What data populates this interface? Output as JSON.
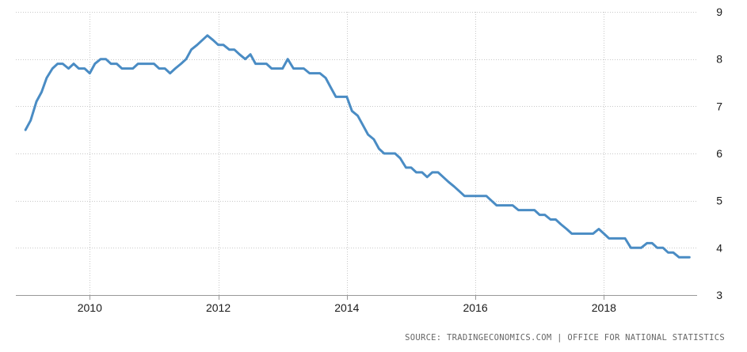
{
  "chart_data": {
    "type": "line",
    "title": "",
    "xlabel": "",
    "ylabel": "",
    "xlim": [
      2008.85,
      2019.45
    ],
    "ylim": [
      3,
      9
    ],
    "x_ticks": [
      2010,
      2012,
      2014,
      2016,
      2018
    ],
    "y_ticks": [
      3,
      4,
      5,
      6,
      7,
      8,
      9
    ],
    "grid": true,
    "legend": "none",
    "y_axis_side": "right",
    "series": [
      {
        "color": "#4a8cc4",
        "x": [
          2009.0,
          2009.08,
          2009.17,
          2009.25,
          2009.33,
          2009.42,
          2009.5,
          2009.58,
          2009.67,
          2009.75,
          2009.83,
          2009.92,
          2010.0,
          2010.08,
          2010.17,
          2010.25,
          2010.33,
          2010.42,
          2010.5,
          2010.58,
          2010.67,
          2010.75,
          2010.83,
          2010.92,
          2011.0,
          2011.08,
          2011.17,
          2011.25,
          2011.33,
          2011.42,
          2011.5,
          2011.58,
          2011.67,
          2011.75,
          2011.83,
          2011.92,
          2012.0,
          2012.08,
          2012.17,
          2012.25,
          2012.33,
          2012.42,
          2012.5,
          2012.58,
          2012.67,
          2012.75,
          2012.83,
          2012.92,
          2013.0,
          2013.08,
          2013.17,
          2013.25,
          2013.33,
          2013.42,
          2013.5,
          2013.58,
          2013.67,
          2013.75,
          2013.83,
          2013.92,
          2014.0,
          2014.08,
          2014.17,
          2014.25,
          2014.33,
          2014.42,
          2014.5,
          2014.58,
          2014.67,
          2014.75,
          2014.83,
          2014.92,
          2015.0,
          2015.08,
          2015.17,
          2015.25,
          2015.33,
          2015.42,
          2015.5,
          2015.58,
          2015.67,
          2015.75,
          2015.83,
          2015.92,
          2016.0,
          2016.08,
          2016.17,
          2016.25,
          2016.33,
          2016.42,
          2016.5,
          2016.58,
          2016.67,
          2016.75,
          2016.83,
          2016.92,
          2017.0,
          2017.08,
          2017.17,
          2017.25,
          2017.33,
          2017.42,
          2017.5,
          2017.58,
          2017.67,
          2017.75,
          2017.83,
          2017.92,
          2018.0,
          2018.08,
          2018.17,
          2018.25,
          2018.33,
          2018.42,
          2018.5,
          2018.58,
          2018.67,
          2018.75,
          2018.83,
          2018.92,
          2019.0,
          2019.08,
          2019.17,
          2019.25,
          2019.33
        ],
        "values": [
          6.5,
          6.7,
          7.1,
          7.3,
          7.6,
          7.8,
          7.9,
          7.9,
          7.8,
          7.9,
          7.8,
          7.8,
          7.7,
          7.9,
          8.0,
          8.0,
          7.9,
          7.9,
          7.8,
          7.8,
          7.8,
          7.9,
          7.9,
          7.9,
          7.9,
          7.8,
          7.8,
          7.7,
          7.8,
          7.9,
          8.0,
          8.2,
          8.3,
          8.4,
          8.5,
          8.4,
          8.3,
          8.3,
          8.2,
          8.2,
          8.1,
          8.0,
          8.1,
          7.9,
          7.9,
          7.9,
          7.8,
          7.8,
          7.8,
          8.0,
          7.8,
          7.8,
          7.8,
          7.7,
          7.7,
          7.7,
          7.6,
          7.4,
          7.2,
          7.2,
          7.2,
          6.9,
          6.8,
          6.6,
          6.4,
          6.3,
          6.1,
          6.0,
          6.0,
          6.0,
          5.9,
          5.7,
          5.7,
          5.6,
          5.6,
          5.5,
          5.6,
          5.6,
          5.5,
          5.4,
          5.3,
          5.2,
          5.1,
          5.1,
          5.1,
          5.1,
          5.1,
          5.0,
          4.9,
          4.9,
          4.9,
          4.9,
          4.8,
          4.8,
          4.8,
          4.8,
          4.7,
          4.7,
          4.6,
          4.6,
          4.5,
          4.4,
          4.3,
          4.3,
          4.3,
          4.3,
          4.3,
          4.4,
          4.3,
          4.2,
          4.2,
          4.2,
          4.2,
          4.0,
          4.0,
          4.0,
          4.1,
          4.1,
          4.0,
          4.0,
          3.9,
          3.9,
          3.8,
          3.8,
          3.8
        ]
      }
    ]
  },
  "source": "SOURCE: TRADINGECONOMICS.COM  |  OFFICE FOR NATIONAL STATISTICS"
}
